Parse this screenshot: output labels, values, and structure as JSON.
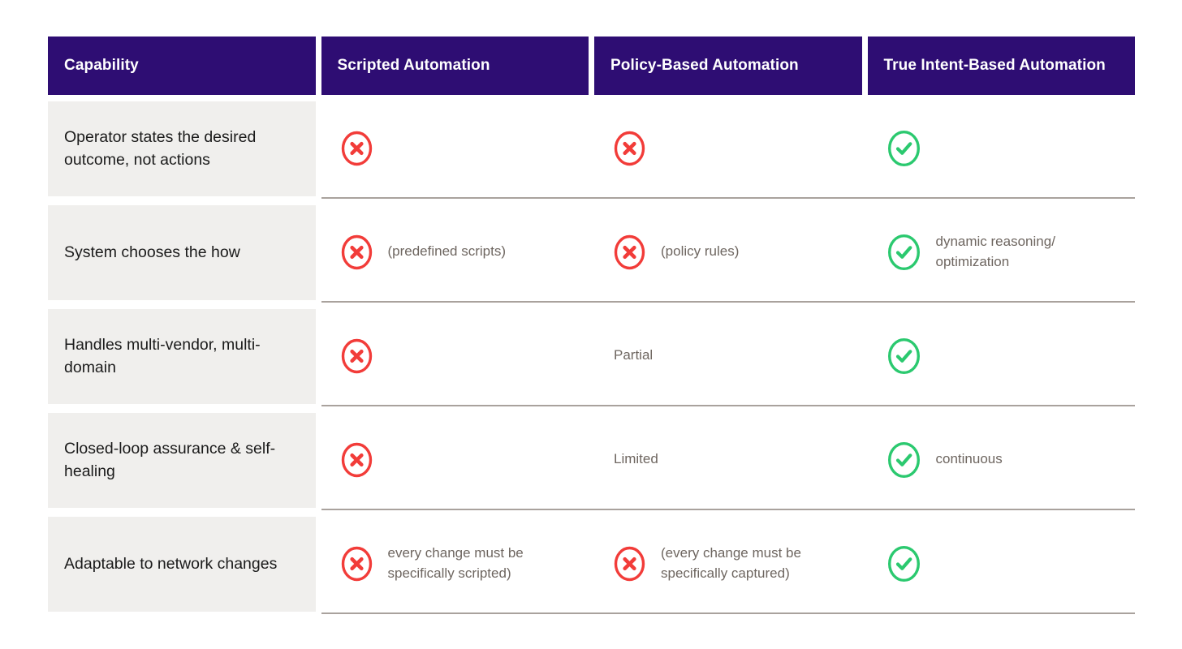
{
  "table": {
    "columns": [
      {
        "label": "Capability"
      },
      {
        "label": "Scripted Automation"
      },
      {
        "label": "Policy-Based Automation"
      },
      {
        "label": "True Intent-Based Automation"
      }
    ],
    "rows": [
      {
        "capability": "Operator states the desired outcome, not actions",
        "cells": [
          {
            "icon": "cross-icon",
            "note": ""
          },
          {
            "icon": "cross-icon",
            "note": ""
          },
          {
            "icon": "check-icon",
            "note": ""
          }
        ]
      },
      {
        "capability": "System chooses the how",
        "cells": [
          {
            "icon": "cross-icon",
            "note": "(predefined scripts)"
          },
          {
            "icon": "cross-icon",
            "note": "(policy rules)"
          },
          {
            "icon": "check-icon",
            "note": "dynamic reasoning/\noptimization"
          }
        ]
      },
      {
        "capability": "Handles multi-vendor, multi-domain",
        "cells": [
          {
            "icon": "cross-icon",
            "note": ""
          },
          {
            "icon": null,
            "note": "Partial"
          },
          {
            "icon": "check-icon",
            "note": ""
          }
        ]
      },
      {
        "capability": "Closed-loop assurance & self-healing",
        "cells": [
          {
            "icon": "cross-icon",
            "note": ""
          },
          {
            "icon": null,
            "note": "Limited"
          },
          {
            "icon": "check-icon",
            "note": "continuous"
          }
        ]
      },
      {
        "capability": "Adaptable to network changes",
        "cells": [
          {
            "icon": "cross-icon",
            "note": "every change must be\nspecifically scripted)"
          },
          {
            "icon": "cross-icon",
            "note": "(every change must be\nspecifically captured)"
          },
          {
            "icon": "check-icon",
            "note": ""
          }
        ]
      }
    ]
  },
  "colors": {
    "header_bg": "#2E0D73",
    "header_text": "#FFFFFF",
    "capability_bg": "#F0EFED",
    "capability_text": "#1B1B1B",
    "note_text": "#6E6660",
    "divider": "#A9A29D",
    "cross_red": "#F23C39",
    "check_green": "#2BC96F",
    "page_bg": "#FFFFFF"
  },
  "chart_data": {
    "type": "table",
    "title": "",
    "columns": [
      "Capability",
      "Scripted Automation",
      "Policy-Based Automation",
      "True Intent-Based Automation"
    ],
    "rows": [
      [
        "Operator states the desired outcome, not actions",
        "✗",
        "✗",
        "✓"
      ],
      [
        "System chooses the how",
        "✗ (predefined scripts)",
        "✗ (policy rules)",
        "✓ dynamic reasoning/optimization"
      ],
      [
        "Handles multi-vendor, multi-domain",
        "✗",
        "Partial",
        "✓"
      ],
      [
        "Closed-loop assurance & self-healing",
        "✗",
        "Limited",
        "✓ continuous"
      ],
      [
        "Adaptable to network changes",
        "✗ every change must be specifically scripted)",
        "✗ (every change must be specifically captured)",
        "✓"
      ]
    ],
    "legend": [
      {
        "symbol": "cross-icon",
        "meaning": "not supported",
        "color": "#F23C39"
      },
      {
        "symbol": "check-icon",
        "meaning": "supported",
        "color": "#2BC96F"
      }
    ]
  }
}
